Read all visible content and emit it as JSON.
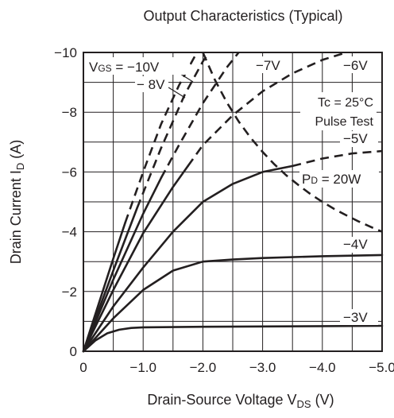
{
  "chart_data": {
    "type": "line",
    "title": "Output Characteristics (Typical)",
    "xlabel": {
      "main": "Drain-Source Voltage  V",
      "sub": "DS",
      "unit": "  (V)"
    },
    "ylabel": {
      "main": "Drain Current  I",
      "sub": "D",
      "unit": "  (A)"
    },
    "xlim": [
      0,
      -5.0
    ],
    "ylim": [
      0,
      -10
    ],
    "x_ticks": [
      {
        "value": 0,
        "label": "0"
      },
      {
        "value": -1.0,
        "label": "−1.0"
      },
      {
        "value": -2.0,
        "label": "−2.0"
      },
      {
        "value": -3.0,
        "label": "−3.0"
      },
      {
        "value": -4.0,
        "label": "−4.0"
      },
      {
        "value": -5.0,
        "label": "−5.0"
      }
    ],
    "y_ticks": [
      {
        "value": 0,
        "label": "0"
      },
      {
        "value": -2,
        "label": "−2"
      },
      {
        "value": -4,
        "label": "−4"
      },
      {
        "value": -6,
        "label": "−6"
      },
      {
        "value": -8,
        "label": "−8"
      },
      {
        "value": -10,
        "label": "−10"
      }
    ],
    "grid": true,
    "conditions": [
      "Tc = 25°C",
      "Pulse Test"
    ],
    "series": [
      {
        "name": "−3V",
        "style": "solid",
        "points": [
          [
            0,
            0
          ],
          [
            -0.2,
            -0.36
          ],
          [
            -0.4,
            -0.6
          ],
          [
            -0.6,
            -0.72
          ],
          [
            -0.8,
            -0.78
          ],
          [
            -1.0,
            -0.8
          ],
          [
            -2.0,
            -0.82
          ],
          [
            -3.0,
            -0.83
          ],
          [
            -4.0,
            -0.84
          ],
          [
            -5.0,
            -0.85
          ]
        ]
      },
      {
        "name": "−4V",
        "style": "solid",
        "points": [
          [
            0,
            0
          ],
          [
            -0.5,
            -1.1
          ],
          [
            -1.0,
            -2.05
          ],
          [
            -1.5,
            -2.7
          ],
          [
            -2.0,
            -3.0
          ],
          [
            -2.5,
            -3.07
          ],
          [
            -3.0,
            -3.12
          ],
          [
            -4.0,
            -3.18
          ],
          [
            -5.0,
            -3.22
          ]
        ]
      },
      {
        "name": "−5V",
        "style": "solid",
        "points": [
          [
            0,
            0
          ],
          [
            -0.5,
            -1.5
          ],
          [
            -1.0,
            -2.8
          ],
          [
            -1.5,
            -4.0
          ],
          [
            -2.0,
            -5.0
          ],
          [
            -2.5,
            -5.6
          ],
          [
            -3.0,
            -6.0
          ],
          [
            -3.5,
            -6.2
          ]
        ]
      },
      {
        "name": "−5V",
        "style": "dashed",
        "points": [
          [
            -3.5,
            -6.2
          ],
          [
            -4.0,
            -6.45
          ],
          [
            -4.5,
            -6.62
          ],
          [
            -5.0,
            -6.7
          ]
        ]
      },
      {
        "name": "−6V",
        "style": "solid",
        "points": [
          [
            0,
            0
          ],
          [
            -0.5,
            -2.05
          ],
          [
            -1.0,
            -3.95
          ],
          [
            -1.5,
            -5.5
          ],
          [
            -1.75,
            -6.2
          ]
        ]
      },
      {
        "name": "−6V",
        "style": "dashed",
        "points": [
          [
            -1.75,
            -6.2
          ],
          [
            -2.0,
            -6.9
          ],
          [
            -2.5,
            -7.9
          ],
          [
            -3.0,
            -8.7
          ],
          [
            -3.5,
            -9.3
          ],
          [
            -4.0,
            -9.75
          ],
          [
            -4.4,
            -10.0
          ]
        ]
      },
      {
        "name": "−7V",
        "style": "solid",
        "points": [
          [
            0,
            0
          ],
          [
            -0.5,
            -2.4
          ],
          [
            -1.0,
            -4.6
          ],
          [
            -1.3,
            -5.8
          ]
        ]
      },
      {
        "name": "−7V",
        "style": "dashed",
        "points": [
          [
            -1.3,
            -5.8
          ],
          [
            -1.6,
            -6.9
          ],
          [
            -2.0,
            -8.3
          ],
          [
            -2.4,
            -9.5
          ],
          [
            -2.6,
            -10.0
          ]
        ]
      },
      {
        "name": "−8V",
        "style": "solid",
        "points": [
          [
            0,
            0
          ],
          [
            -0.5,
            -2.7
          ],
          [
            -0.9,
            -4.8
          ]
        ]
      },
      {
        "name": "−8V",
        "style": "dashed",
        "points": [
          [
            -0.9,
            -4.8
          ],
          [
            -1.3,
            -6.8
          ],
          [
            -1.7,
            -8.6
          ],
          [
            -2.0,
            -9.7
          ],
          [
            -2.1,
            -10.0
          ]
        ]
      },
      {
        "name": "V",
        "style": "solid",
        "points": [
          [
            0,
            0
          ],
          [
            -0.5,
            -3.1
          ],
          [
            -0.7,
            -4.3
          ]
        ]
      },
      {
        "name": "V",
        "style": "dashed",
        "points": [
          [
            -0.7,
            -4.3
          ],
          [
            -1.0,
            -6.0
          ],
          [
            -1.3,
            -7.6
          ],
          [
            -1.6,
            -8.9
          ],
          [
            -1.9,
            -10.0
          ]
        ]
      },
      {
        "name": "P = 20W",
        "style": "dashed",
        "points": [
          [
            -2.0,
            -10.0
          ],
          [
            -2.2,
            -9.09
          ],
          [
            -2.4,
            -8.33
          ],
          [
            -2.6,
            -7.69
          ],
          [
            -2.8,
            -7.14
          ],
          [
            -3.0,
            -6.67
          ],
          [
            -3.2,
            -6.25
          ],
          [
            -3.4,
            -5.88
          ],
          [
            -3.6,
            -5.56
          ],
          [
            -3.8,
            -5.26
          ],
          [
            -4.0,
            -5.0
          ],
          [
            -4.2,
            -4.76
          ],
          [
            -4.4,
            -4.55
          ],
          [
            -4.6,
            -4.35
          ],
          [
            -4.8,
            -4.17
          ],
          [
            -5.0,
            -4.0
          ]
        ]
      }
    ],
    "labels": {
      "vgs_prefix": "V",
      "vgs_sub": "GS",
      "vgs_value": " = −10V",
      "v8": "− 8V",
      "v7": "−7V",
      "v6": "−6V",
      "v5": "−5V",
      "v4": "−4V",
      "v3": "−3V",
      "tc": "Tc = 25°C",
      "pulse": "Pulse Test",
      "pd_prefix": "P",
      "pd_sub": "D",
      "pd_value": " = 20W"
    }
  }
}
